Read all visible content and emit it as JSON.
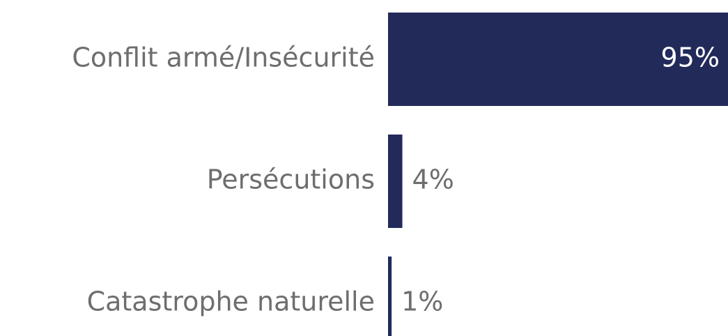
{
  "chart_data": {
    "type": "hbar",
    "categories": [
      "Conflit armé/Insécurité",
      "Persécutions",
      "Catastrophe naturelle"
    ],
    "values": [
      95,
      4,
      1
    ],
    "value_labels": [
      "95%",
      "4%",
      "1%"
    ],
    "color": "#222a5a"
  }
}
